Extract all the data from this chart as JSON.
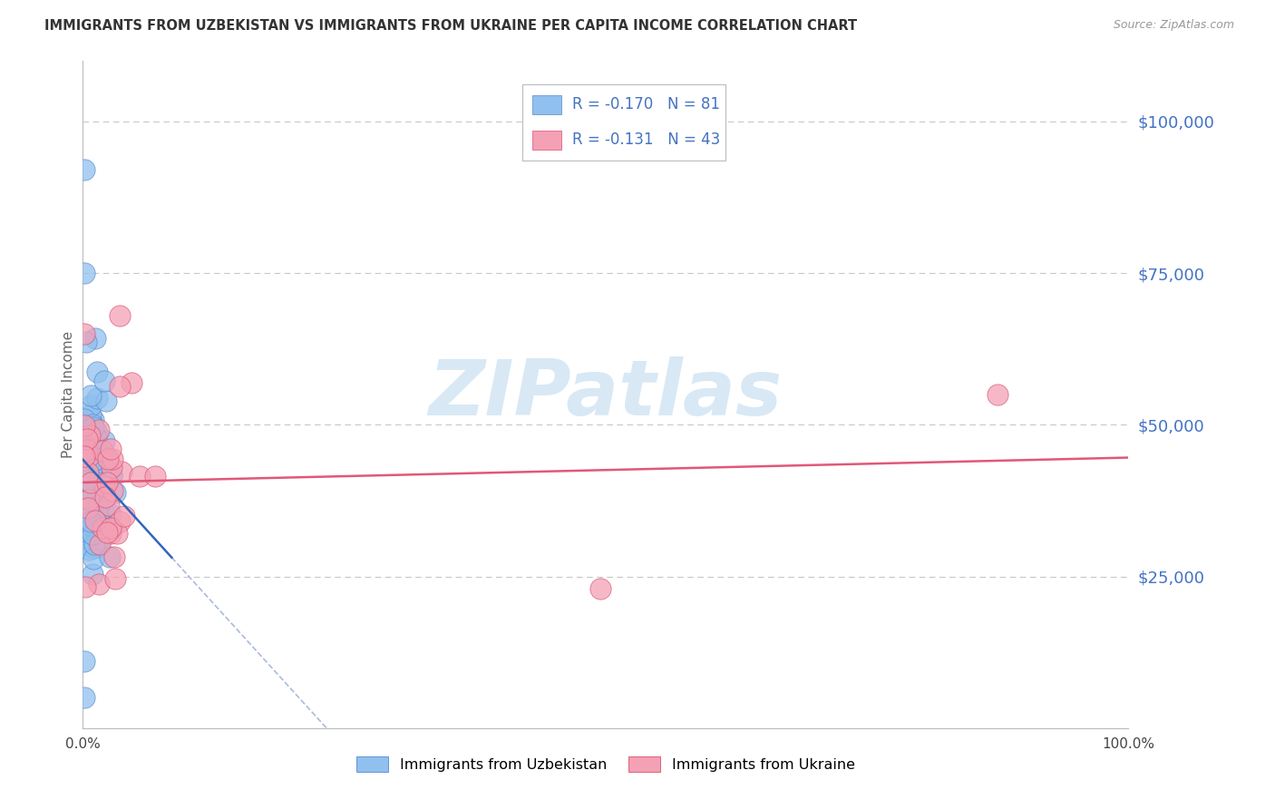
{
  "title": "IMMIGRANTS FROM UZBEKISTAN VS IMMIGRANTS FROM UKRAINE PER CAPITA INCOME CORRELATION CHART",
  "source": "Source: ZipAtlas.com",
  "ylabel": "Per Capita Income",
  "yticks": [
    0,
    25000,
    50000,
    75000,
    100000
  ],
  "ytick_labels": [
    "",
    "$25,000",
    "$50,000",
    "$75,000",
    "$100,000"
  ],
  "xlim": [
    0,
    1.0
  ],
  "ylim": [
    0,
    110000
  ],
  "background_color": "#ffffff",
  "grid_color": "#c8c8c8",
  "watermark": "ZIPatlas",
  "watermark_color": "#d8e8f5",
  "uzb_color": "#90C0EE",
  "uzb_edge": "#5588CC",
  "uzb_trend_color": "#3366BB",
  "ukr_color": "#F4A0B5",
  "ukr_edge": "#D85070",
  "ukr_trend_color": "#E05878",
  "uzb_name": "Immigrants from Uzbekistan",
  "ukr_name": "Immigrants from Ukraine",
  "uzb_R": -0.17,
  "uzb_N": 81,
  "ukr_R": -0.131,
  "ukr_N": 43,
  "legend_R_color": "#4472C4",
  "legend_N_color": "#4472C4"
}
